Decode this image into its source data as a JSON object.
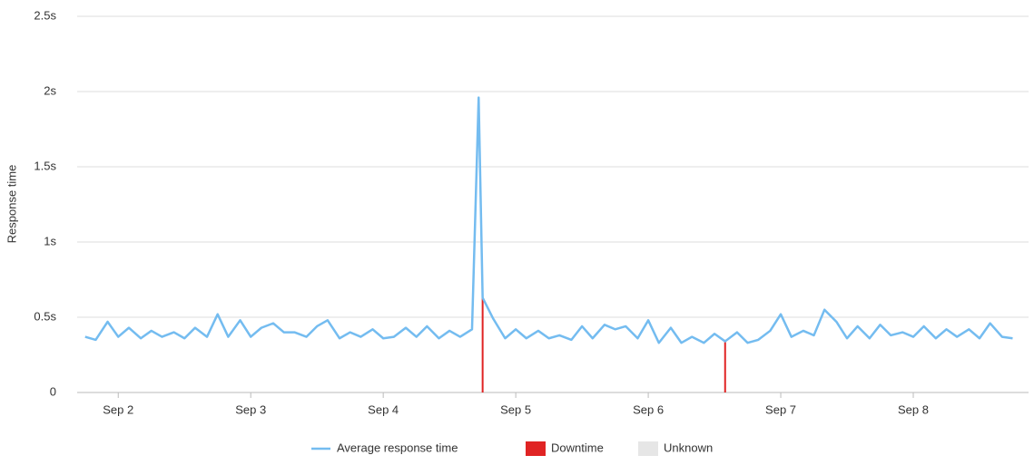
{
  "chart_data": {
    "type": "line",
    "y_label": "Response time",
    "xlim": [
      1.69,
      8.87
    ],
    "xticks": [
      {
        "value": 2,
        "label": "Sep 2"
      },
      {
        "value": 3,
        "label": "Sep 3"
      },
      {
        "value": 4,
        "label": "Sep 4"
      },
      {
        "value": 5,
        "label": "Sep 5"
      },
      {
        "value": 6,
        "label": "Sep 6"
      },
      {
        "value": 7,
        "label": "Sep 7"
      },
      {
        "value": 8,
        "label": "Sep 8"
      }
    ],
    "ylim": [
      0,
      2.5
    ],
    "yticks": [
      0,
      {
        "value": 0.5,
        "label": "0.5s"
      },
      {
        "value": 1,
        "label": "1s"
      },
      {
        "value": 1.5,
        "label": "1.5s"
      },
      {
        "value": 2,
        "label": "2s"
      },
      {
        "value": 2.5,
        "label": "2.5s"
      }
    ],
    "grid": true,
    "legend": "bottom",
    "series": [
      {
        "name": "Average response time",
        "type": "line",
        "color": "#74bcf0",
        "x": [
          1.75,
          1.83,
          1.92,
          2.0,
          2.08,
          2.17,
          2.25,
          2.33,
          2.42,
          2.5,
          2.58,
          2.67,
          2.75,
          2.83,
          2.92,
          3.0,
          3.08,
          3.17,
          3.25,
          3.33,
          3.42,
          3.5,
          3.58,
          3.67,
          3.75,
          3.83,
          3.92,
          4.0,
          4.08,
          4.17,
          4.25,
          4.33,
          4.42,
          4.5,
          4.58,
          4.67,
          4.72,
          4.75,
          4.83,
          4.92,
          5.0,
          5.08,
          5.17,
          5.25,
          5.33,
          5.42,
          5.5,
          5.58,
          5.67,
          5.75,
          5.83,
          5.92,
          6.0,
          6.08,
          6.17,
          6.25,
          6.33,
          6.42,
          6.5,
          6.58,
          6.67,
          6.75,
          6.83,
          6.92,
          7.0,
          7.08,
          7.17,
          7.25,
          7.33,
          7.42,
          7.5,
          7.58,
          7.67,
          7.75,
          7.83,
          7.92,
          8.0,
          8.08,
          8.17,
          8.25,
          8.33,
          8.42,
          8.5,
          8.58,
          8.67,
          8.75
        ],
        "values": [
          0.37,
          0.35,
          0.47,
          0.37,
          0.43,
          0.36,
          0.41,
          0.37,
          0.4,
          0.36,
          0.43,
          0.37,
          0.52,
          0.37,
          0.48,
          0.37,
          0.43,
          0.46,
          0.4,
          0.4,
          0.37,
          0.44,
          0.48,
          0.36,
          0.4,
          0.37,
          0.42,
          0.36,
          0.37,
          0.43,
          0.37,
          0.44,
          0.36,
          0.41,
          0.37,
          0.42,
          1.96,
          0.63,
          0.49,
          0.36,
          0.42,
          0.36,
          0.41,
          0.36,
          0.38,
          0.35,
          0.44,
          0.36,
          0.45,
          0.42,
          0.44,
          0.36,
          0.48,
          0.33,
          0.43,
          0.33,
          0.37,
          0.33,
          0.39,
          0.34,
          0.4,
          0.33,
          0.35,
          0.41,
          0.52,
          0.37,
          0.41,
          0.38,
          0.55,
          0.47,
          0.36,
          0.44,
          0.36,
          0.45,
          0.38,
          0.4,
          0.37,
          0.44,
          0.36,
          0.42,
          0.37,
          0.42,
          0.36,
          0.46,
          0.37,
          0.36
        ]
      },
      {
        "name": "Downtime",
        "type": "bar",
        "color": "#e02424",
        "x": [
          4.75,
          6.58
        ],
        "values": [
          0.63,
          0.35
        ]
      },
      {
        "name": "Unknown",
        "type": "bar",
        "color": "#e6e6e6"
      }
    ]
  }
}
